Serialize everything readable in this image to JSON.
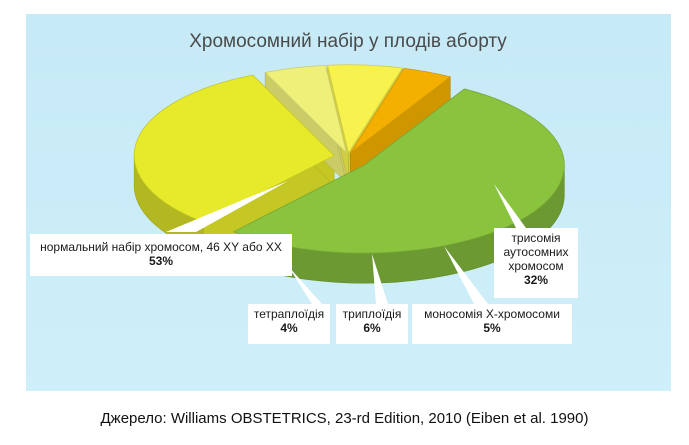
{
  "chart_data": {
    "type": "pie",
    "title": "Хромосомний набір у плодів аборту",
    "slices": [
      {
        "label": "нормальний набір хромосом, 46 XY або XX",
        "value": 53,
        "value_label": "53%",
        "color": "#8ac43f"
      },
      {
        "label": "трисомія аутосомних хромосом",
        "value": 32,
        "value_label": "32%",
        "color": "#e6ea2a"
      },
      {
        "label": "моносомія X-хромосоми",
        "value": 5,
        "value_label": "5%",
        "color": "#eef07a"
      },
      {
        "label": "триплоїдія",
        "value": 6,
        "value_label": "6%",
        "color": "#f7f24e"
      },
      {
        "label": "тетраплоїдія",
        "value": 4,
        "value_label": "4%",
        "color": "#f3b000"
      }
    ],
    "background": "#c9ecf7"
  },
  "source": "Джерело: Williams OBSTETRICS, 23-rd Edition, 2010 (Eiben et al. 1990)"
}
